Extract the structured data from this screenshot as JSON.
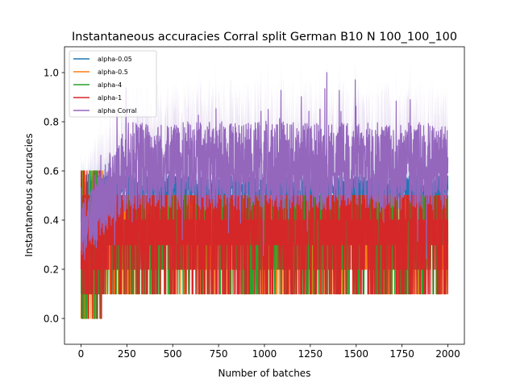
{
  "chart_data": {
    "type": "line",
    "title": "Instantaneous accuracies Corral split German B10 N 100_100_100",
    "xlabel": "Number of batches",
    "ylabel": "Instantaneous accuracies",
    "xlim": [
      -90,
      2090
    ],
    "ylim": [
      -0.105,
      1.105
    ],
    "x_ticks": [
      0,
      250,
      500,
      750,
      1000,
      1250,
      1500,
      1750,
      2000
    ],
    "y_ticks": [
      0.0,
      0.2,
      0.4,
      0.6,
      0.8,
      1.0
    ],
    "x_tick_labels": [
      "0",
      "250",
      "500",
      "750",
      "1000",
      "1250",
      "1500",
      "1750",
      "2000"
    ],
    "y_tick_labels": [
      "0.0",
      "0.2",
      "0.4",
      "0.6",
      "0.8",
      "1.0"
    ],
    "n_batches": 2000,
    "grid": false,
    "legend_position": "top-left",
    "series": [
      {
        "name": "alpha-0.05",
        "color": "#1f77b4",
        "mean_level": 0.52,
        "band": 0.06
      },
      {
        "name": "alpha-0.5",
        "color": "#ff7f0e",
        "mean_level": 0.3,
        "band": 0.2
      },
      {
        "name": "alpha-4",
        "color": "#2ca02c",
        "mean_level": 0.3,
        "band": 0.2
      },
      {
        "name": "alpha-1",
        "color": "#d62728",
        "mean_level": 0.3,
        "band": 0.2
      },
      {
        "name": "alpha Corral",
        "color": "#9467bd",
        "mean_level": 0.62,
        "band": 0.18
      }
    ]
  }
}
